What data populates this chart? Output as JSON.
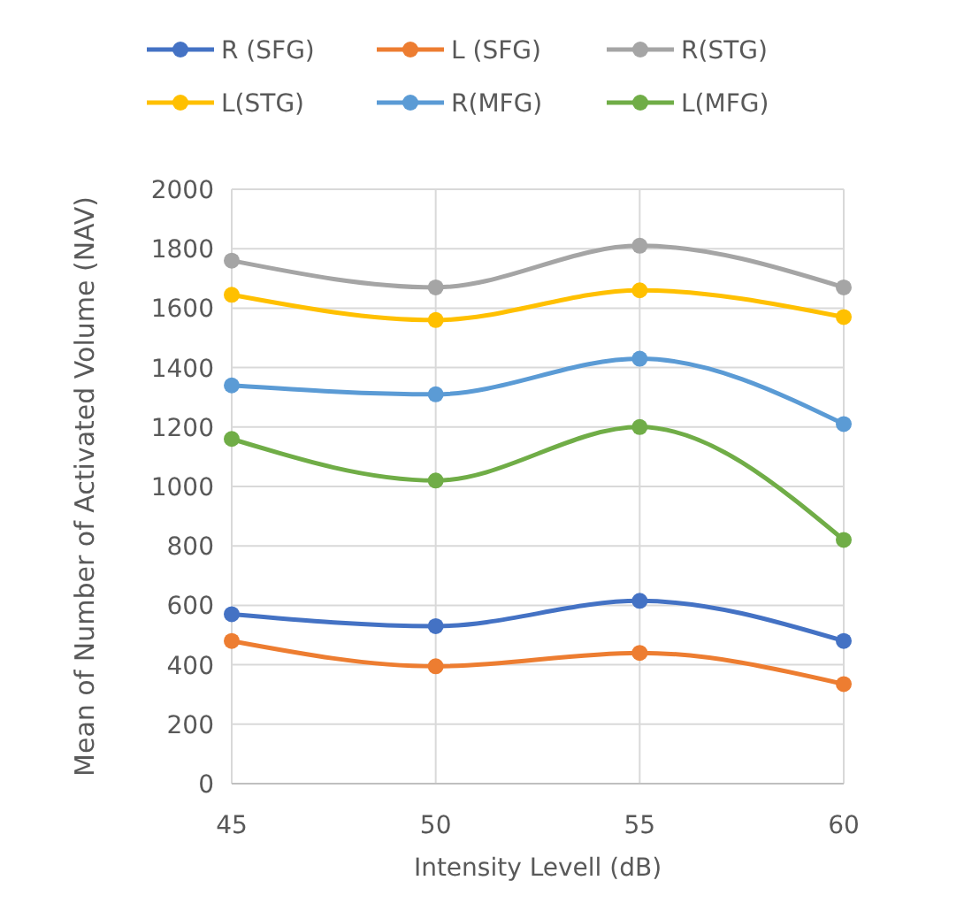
{
  "chart_data": {
    "type": "line",
    "xlabel": "Intensity Levell (dB)",
    "ylabel": "Mean of Number of Activated Volume (NAV)",
    "x": [
      45,
      50,
      55,
      60
    ],
    "xlim": [
      45,
      60
    ],
    "xticks": [
      45,
      50,
      55,
      60
    ],
    "ylim": [
      0,
      2000
    ],
    "yticks": [
      0,
      200,
      400,
      600,
      800,
      1000,
      1200,
      1400,
      1600,
      1800,
      2000
    ],
    "grid": true,
    "legend": "top",
    "marker": "circle",
    "line_style": "solid",
    "series": [
      {
        "name": "R (SFG)",
        "color": "#4472c4",
        "values": [
          570,
          530,
          615,
          480
        ]
      },
      {
        "name": "L (SFG)",
        "color": "#ed7d31",
        "values": [
          480,
          395,
          440,
          335
        ]
      },
      {
        "name": "R(STG)",
        "color": "#a5a5a5",
        "values": [
          1760,
          1670,
          1810,
          1670
        ]
      },
      {
        "name": "L(STG)",
        "color": "#ffc000",
        "values": [
          1645,
          1560,
          1660,
          1570
        ]
      },
      {
        "name": "R(MFG)",
        "color": "#5b9bd5",
        "values": [
          1340,
          1310,
          1430,
          1210
        ]
      },
      {
        "name": "L(MFG)",
        "color": "#70ad47",
        "values": [
          1160,
          1020,
          1200,
          820
        ]
      }
    ]
  }
}
